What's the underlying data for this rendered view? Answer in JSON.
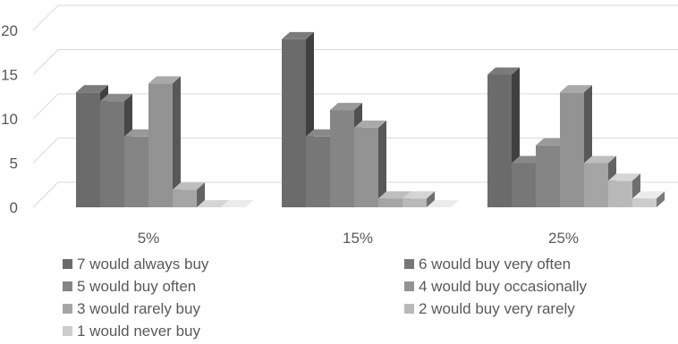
{
  "chart_data": {
    "type": "bar",
    "subtype": "3d-clustered-column",
    "categories": [
      "5%",
      "15%",
      "25%"
    ],
    "series": [
      {
        "name": "7 would always buy",
        "values": [
          13,
          19,
          15
        ],
        "color": "#6b6b6b"
      },
      {
        "name": "6 would buy very often",
        "values": [
          12,
          8,
          5
        ],
        "color": "#777777"
      },
      {
        "name": "5 would buy often",
        "values": [
          8,
          11,
          7
        ],
        "color": "#858585"
      },
      {
        "name": "4 would buy occasionally",
        "values": [
          14,
          9,
          13
        ],
        "color": "#939393"
      },
      {
        "name": "3 would rarely buy",
        "values": [
          2,
          1,
          5
        ],
        "color": "#a5a5a5"
      },
      {
        "name": "2 would buy very rarely",
        "values": [
          0,
          1,
          3
        ],
        "color": "#b9b9b9"
      },
      {
        "name": "1 would never buy",
        "values": [
          0,
          0,
          1
        ],
        "color": "#cccccc"
      }
    ],
    "yticks": [
      "0",
      "5",
      "10",
      "15",
      "20"
    ],
    "ylim": [
      0,
      22
    ],
    "grid": true,
    "legend_position": "bottom"
  }
}
